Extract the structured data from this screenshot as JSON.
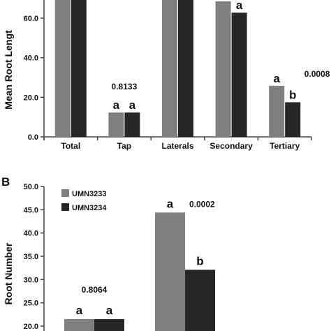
{
  "colors": {
    "UMN3233": "#7f7f7f",
    "UMN3234": "#262626",
    "axis": "#444444"
  },
  "chart_data": [
    {
      "type": "bar",
      "panel": "",
      "ylabel": "Mean Root Lengt",
      "xlabel": "",
      "title": "",
      "ylim": [
        0,
        70
      ],
      "yticks": [
        "0.0",
        "20.0",
        "40.0",
        "60.0"
      ],
      "ytick_values": [
        0,
        20,
        40,
        60
      ],
      "categories": [
        "Total",
        "Tap",
        "Laterals",
        "Secondary",
        "Tertiary"
      ],
      "series": [
        {
          "values": [
            80,
            12.3,
            80,
            68.5,
            25.8
          ],
          "color": "#7f7f7f"
        },
        {
          "values": [
            80,
            12.3,
            80,
            62.8,
            17.5
          ],
          "color": "#262626"
        }
      ],
      "annotations": [
        {
          "category": "Tap",
          "letters": [
            "a",
            "a"
          ],
          "pvalue": "0.8133"
        },
        {
          "category": "Secondary",
          "letters": [
            "",
            "a"
          ],
          "pvalue": ""
        },
        {
          "category": "Tertiary",
          "letters": [
            "a",
            "b"
          ],
          "pvalue": "0.0008"
        }
      ],
      "grid": false,
      "legend": "none"
    },
    {
      "type": "bar",
      "panel": "B",
      "ylabel": "Root Number",
      "xlabel": "",
      "title": "",
      "ylim": [
        20,
        50
      ],
      "yticks": [
        "20.0",
        "25.0",
        "30.0",
        "35.0",
        "40.0",
        "45.0",
        "50.0"
      ],
      "ytick_values": [
        20,
        25,
        30,
        35,
        40,
        45,
        50
      ],
      "categories": [
        "",
        ""
      ],
      "series": [
        {
          "name": "UMN3233",
          "values": [
            21.5,
            44.4
          ],
          "color": "#7f7f7f"
        },
        {
          "name": "UMN3234",
          "values": [
            21.5,
            32.1
          ],
          "color": "#262626"
        }
      ],
      "annotations": [
        {
          "category_index": 0,
          "letters": [
            "a",
            "a"
          ],
          "pvalue": "0.8064"
        },
        {
          "category_index": 1,
          "letters": [
            "a",
            "b"
          ],
          "pvalue": "0.0002"
        }
      ],
      "grid": false,
      "legend": "top-left"
    }
  ]
}
